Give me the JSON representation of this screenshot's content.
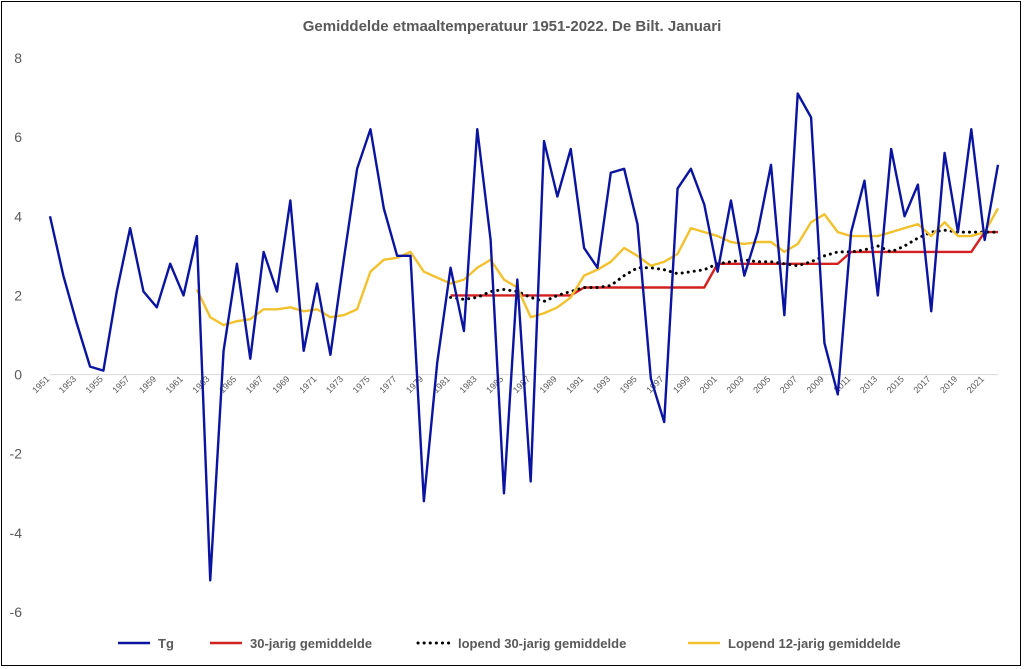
{
  "chart_data": {
    "type": "line",
    "title": "Gemiddelde etmaaltemperatuur 1951-2022. De Bilt. Januari",
    "xlabel": "",
    "ylabel": "",
    "ylim": [
      -6,
      8
    ],
    "yticks": [
      -6,
      -4,
      -2,
      0,
      2,
      4,
      6,
      8
    ],
    "x": [
      1951,
      1952,
      1953,
      1954,
      1955,
      1956,
      1957,
      1958,
      1959,
      1960,
      1961,
      1962,
      1963,
      1964,
      1965,
      1966,
      1967,
      1968,
      1969,
      1970,
      1971,
      1972,
      1973,
      1974,
      1975,
      1976,
      1977,
      1978,
      1979,
      1980,
      1981,
      1982,
      1983,
      1984,
      1985,
      1986,
      1987,
      1988,
      1989,
      1990,
      1991,
      1992,
      1993,
      1994,
      1995,
      1996,
      1997,
      1998,
      1999,
      2000,
      2001,
      2002,
      2003,
      2004,
      2005,
      2006,
      2007,
      2008,
      2009,
      2010,
      2011,
      2012,
      2013,
      2014,
      2015,
      2016,
      2017,
      2018,
      2019,
      2020,
      2021,
      2022
    ],
    "x_tick_labels": [
      "1951",
      "1953",
      "1955",
      "1957",
      "1959",
      "1961",
      "1963",
      "1965",
      "1967",
      "1969",
      "1971",
      "1973",
      "1975",
      "1977",
      "1979",
      "1981",
      "1983",
      "1985",
      "1987",
      "1989",
      "1991",
      "1993",
      "1995",
      "1997",
      "1999",
      "2001",
      "2003",
      "2005",
      "2007",
      "2009",
      "2011",
      "2013",
      "2015",
      "2017",
      "2019",
      "2021"
    ],
    "grid": false,
    "legend_position": "bottom",
    "series": [
      {
        "name": "Tg",
        "color": "#0a14a0",
        "style": "solid",
        "values": [
          4.0,
          2.5,
          1.3,
          0.2,
          0.1,
          2.1,
          3.7,
          2.1,
          1.7,
          2.8,
          2.0,
          3.5,
          -5.2,
          0.6,
          2.8,
          0.4,
          3.1,
          2.1,
          4.4,
          0.6,
          2.3,
          0.5,
          2.9,
          5.2,
          6.2,
          4.2,
          3.0,
          3.0,
          -3.2,
          0.3,
          2.7,
          1.1,
          6.2,
          3.4,
          -3.0,
          2.4,
          -2.7,
          5.9,
          4.5,
          5.7,
          3.2,
          2.7,
          5.1,
          5.2,
          3.8,
          -0.1,
          -1.2,
          4.7,
          5.2,
          4.3,
          2.6,
          4.4,
          2.5,
          3.6,
          5.3,
          1.5,
          7.1,
          6.5,
          0.8,
          -0.5,
          3.6,
          4.9,
          2.0,
          5.7,
          4.0,
          4.8,
          1.6,
          5.6,
          3.6,
          6.2,
          3.4,
          5.3
        ]
      },
      {
        "name": "30-jarig gemiddelde",
        "color": "#d42020",
        "style": "solid",
        "values": [
          null,
          null,
          null,
          null,
          null,
          null,
          null,
          null,
          null,
          null,
          null,
          null,
          null,
          null,
          null,
          null,
          null,
          null,
          null,
          null,
          null,
          null,
          null,
          null,
          null,
          null,
          null,
          null,
          null,
          null,
          2.0,
          2.0,
          2.0,
          2.0,
          2.0,
          2.0,
          2.0,
          2.0,
          2.0,
          2.0,
          2.2,
          2.2,
          2.2,
          2.2,
          2.2,
          2.2,
          2.2,
          2.2,
          2.2,
          2.2,
          2.8,
          2.8,
          2.8,
          2.8,
          2.8,
          2.8,
          2.8,
          2.8,
          2.8,
          2.8,
          3.1,
          3.1,
          3.1,
          3.1,
          3.1,
          3.1,
          3.1,
          3.1,
          3.1,
          3.1,
          3.6,
          3.6
        ]
      },
      {
        "name": "lopend 30-jarig gemiddelde",
        "color": "#000000",
        "style": "dotted",
        "values": [
          null,
          null,
          null,
          null,
          null,
          null,
          null,
          null,
          null,
          null,
          null,
          null,
          null,
          null,
          null,
          null,
          null,
          null,
          null,
          null,
          null,
          null,
          null,
          null,
          null,
          null,
          null,
          null,
          null,
          null,
          1.95,
          1.9,
          1.95,
          2.1,
          2.15,
          2.1,
          1.95,
          1.85,
          2.0,
          2.1,
          2.2,
          2.2,
          2.25,
          2.5,
          2.7,
          2.7,
          2.65,
          2.55,
          2.6,
          2.65,
          2.8,
          2.85,
          2.9,
          2.85,
          2.85,
          2.8,
          2.75,
          2.85,
          3.0,
          3.1,
          3.1,
          3.15,
          3.25,
          3.1,
          3.25,
          3.45,
          3.6,
          3.65,
          3.6,
          3.6,
          3.6,
          3.6
        ]
      },
      {
        "name": "Lopend 12-jarig gemiddelde",
        "color": "#f2c12e",
        "style": "solid",
        "values": [
          null,
          null,
          null,
          null,
          null,
          null,
          null,
          null,
          null,
          null,
          null,
          2.15,
          1.45,
          1.25,
          1.35,
          1.4,
          1.65,
          1.65,
          1.7,
          1.6,
          1.65,
          1.45,
          1.5,
          1.65,
          2.6,
          2.9,
          2.95,
          3.1,
          2.6,
          2.45,
          2.3,
          2.4,
          2.7,
          2.9,
          2.4,
          2.2,
          1.45,
          1.55,
          1.7,
          1.95,
          2.5,
          2.65,
          2.85,
          3.2,
          3.0,
          2.75,
          2.85,
          3.05,
          3.7,
          3.6,
          3.5,
          3.35,
          3.3,
          3.35,
          3.35,
          3.1,
          3.3,
          3.85,
          4.05,
          3.6,
          3.5,
          3.5,
          3.5,
          3.6,
          3.7,
          3.8,
          3.5,
          3.85,
          3.5,
          3.5,
          3.6,
          4.2
        ]
      }
    ]
  }
}
